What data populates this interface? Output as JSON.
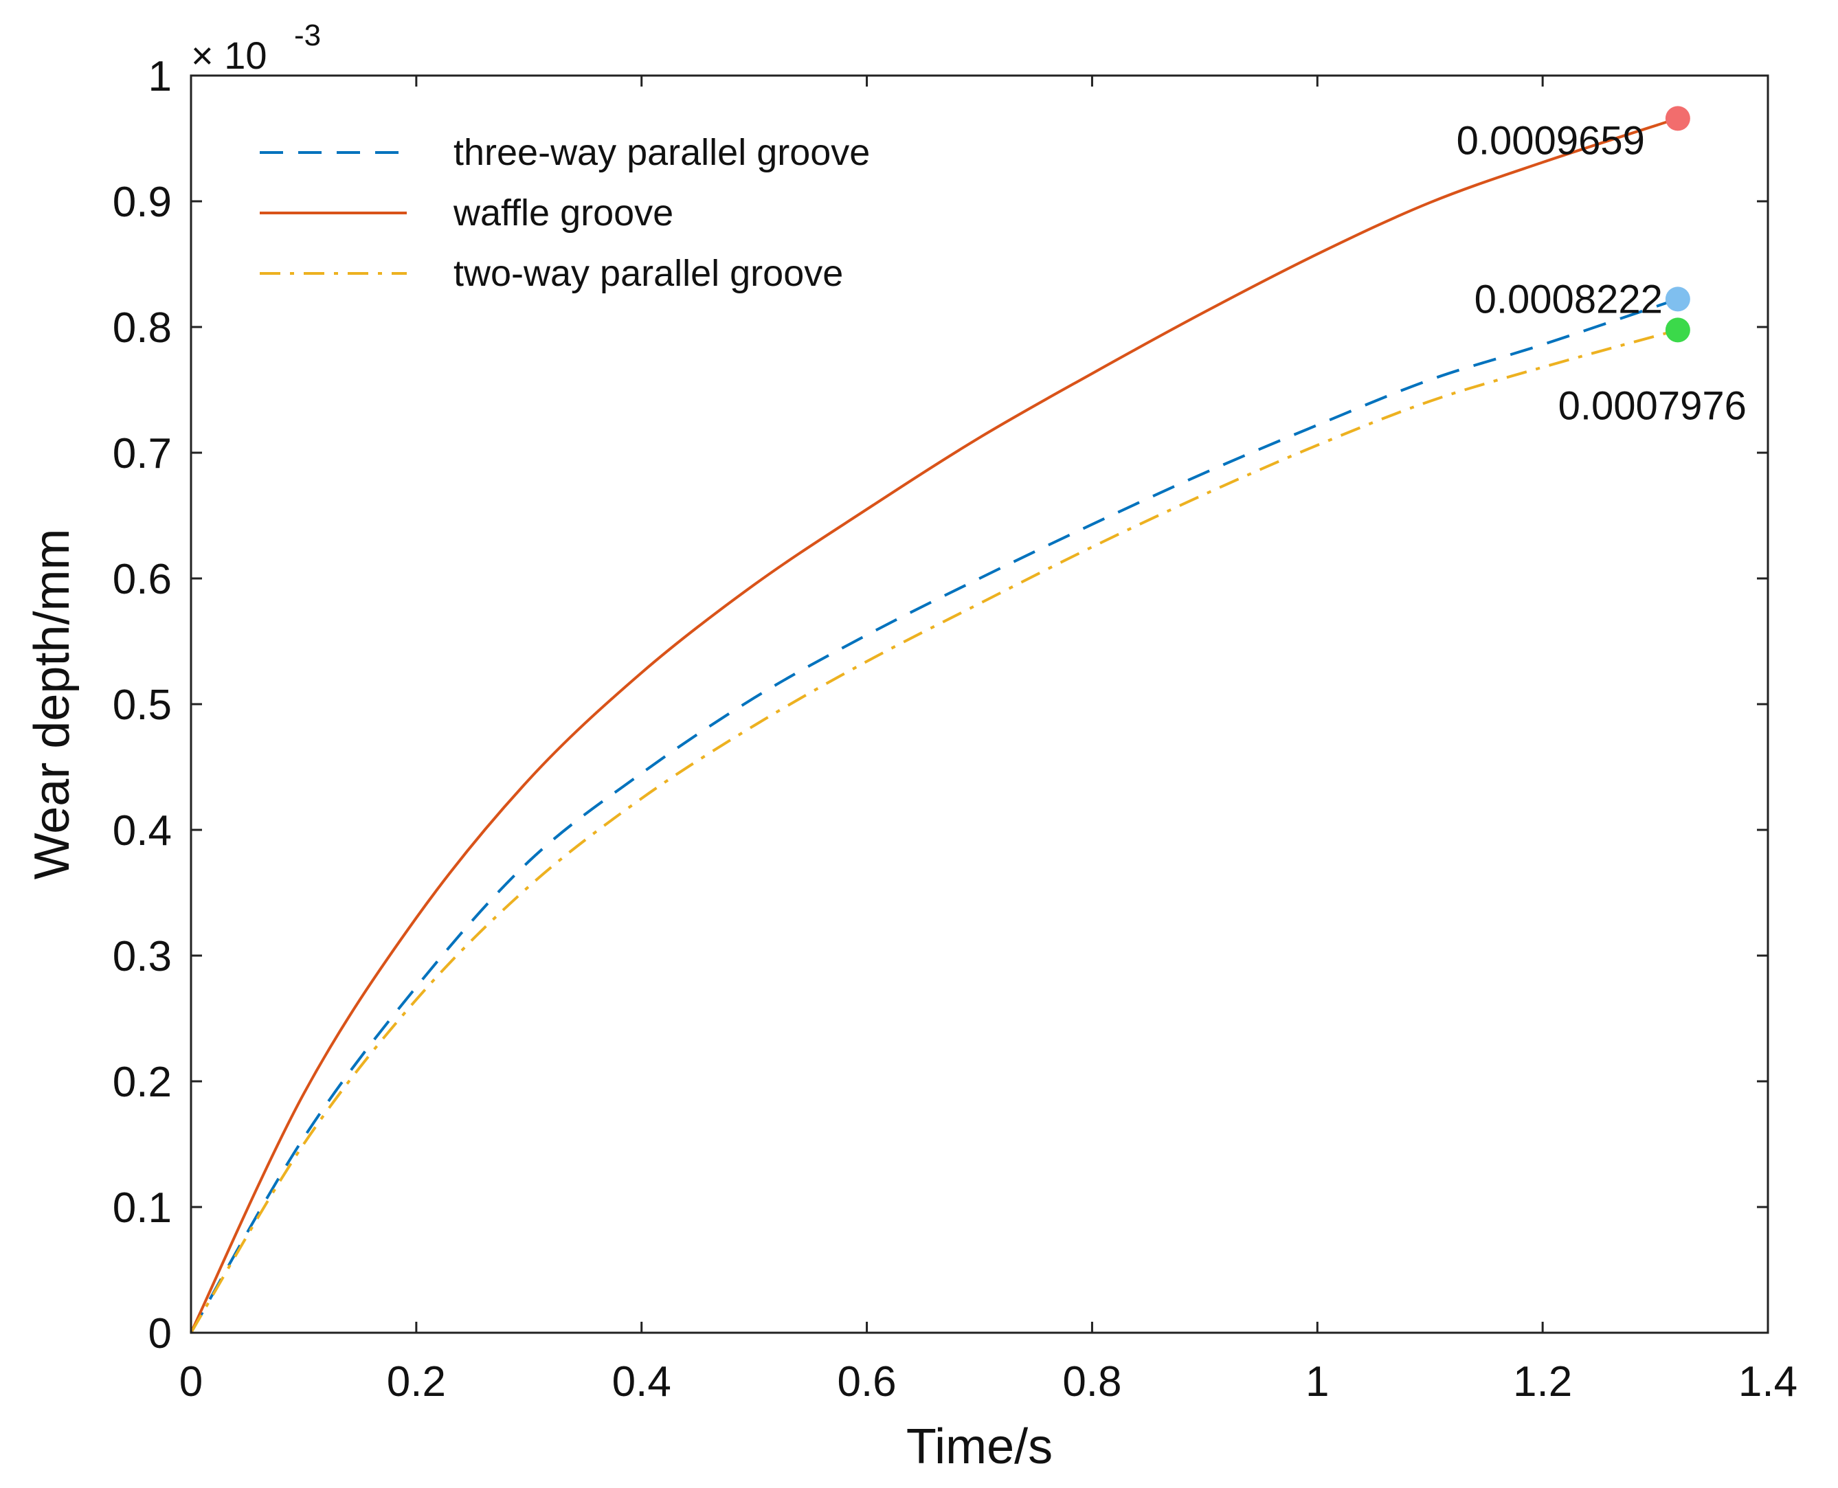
{
  "chart_data": {
    "type": "line",
    "title": "",
    "xlabel": "Time/s",
    "ylabel": "Wear depth/mm",
    "xlim": [
      0,
      1.4
    ],
    "ylim": [
      0,
      1
    ],
    "xticks": [
      0,
      0.2,
      0.4,
      0.6,
      0.8,
      1,
      1.2,
      1.4
    ],
    "xtick_labels": [
      "0",
      "0.2",
      "0.4",
      "0.6",
      "0.8",
      "1",
      "1.2",
      "1.4"
    ],
    "yticks": [
      0,
      0.1,
      0.2,
      0.3,
      0.4,
      0.5,
      0.6,
      0.7,
      0.8,
      0.9,
      1
    ],
    "ytick_labels": [
      "0",
      "0.1",
      "0.2",
      "0.3",
      "0.4",
      "0.5",
      "0.6",
      "0.7",
      "0.8",
      "0.9",
      "1"
    ],
    "y_exponent_prefix": "× 10",
    "y_exponent_power": "-3",
    "grid": false,
    "legend_position": "top-left",
    "x": [
      0,
      0.1,
      0.2,
      0.3,
      0.4,
      0.5,
      0.6,
      0.7,
      0.8,
      0.9,
      1.0,
      1.1,
      1.2,
      1.32
    ],
    "series": [
      {
        "name": "three-way parallel groove",
        "color": "#0072BD",
        "style": "dashed",
        "values": [
          0,
          0.155,
          0.275,
          0.375,
          0.445,
          0.505,
          0.555,
          0.6,
          0.643,
          0.684,
          0.722,
          0.758,
          0.786,
          0.8222
        ]
      },
      {
        "name": "waffle groove",
        "color": "#D95319",
        "style": "solid",
        "values": [
          0,
          0.19,
          0.33,
          0.44,
          0.525,
          0.595,
          0.655,
          0.712,
          0.763,
          0.812,
          0.858,
          0.899,
          0.931,
          0.9659
        ]
      },
      {
        "name": "two-way parallel groove",
        "color": "#EDB120",
        "style": "dashdot",
        "values": [
          0,
          0.15,
          0.265,
          0.355,
          0.425,
          0.483,
          0.534,
          0.58,
          0.625,
          0.667,
          0.706,
          0.741,
          0.768,
          0.7976
        ]
      }
    ],
    "annotations": [
      {
        "label": "0.0009659",
        "x": 1.32,
        "y": 0.9659,
        "marker_color": "#F26D6D",
        "text_side": "left-below"
      },
      {
        "label": "0.0008222",
        "x": 1.32,
        "y": 0.8222,
        "marker_color": "#7FBFEF",
        "text_side": "left-above"
      },
      {
        "label": "0.0007976",
        "x": 1.32,
        "y": 0.7976,
        "marker_color": "#3BD94A",
        "text_side": "below"
      }
    ]
  }
}
